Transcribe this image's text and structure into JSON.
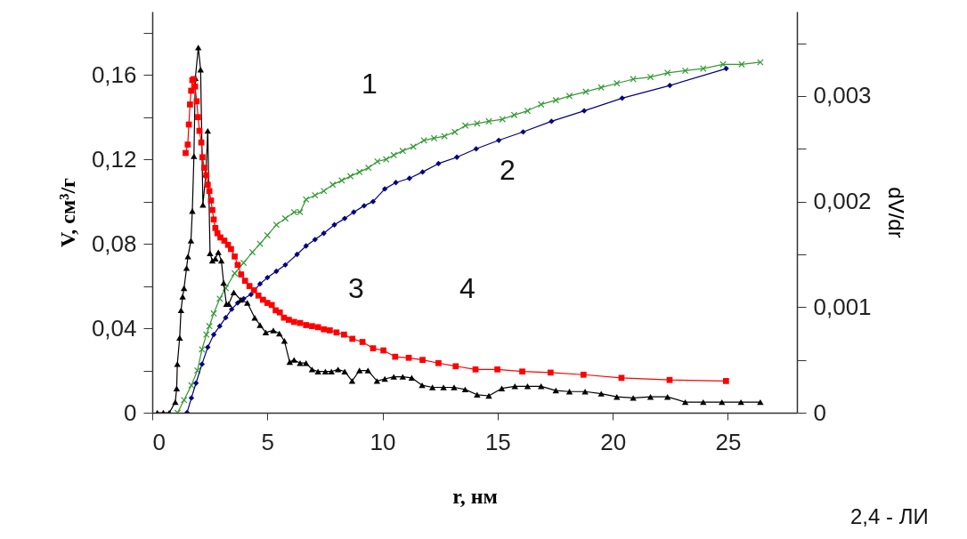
{
  "chart_data": {
    "type": "line",
    "xlabel": "r,  нм",
    "ylabel": "V,  см³/г",
    "y2label": "dV/dr",
    "xlim": [
      0,
      28
    ],
    "xticks": [
      0,
      5,
      10,
      15,
      20,
      25
    ],
    "ylim": [
      0,
      0.19
    ],
    "yticks": [
      0,
      {
        "value": 0.02,
        "label": null
      },
      {
        "value": 0.04,
        "label": "0,04"
      },
      {
        "value": 0.06,
        "label": null
      },
      {
        "value": 0.08,
        "label": "0,08"
      },
      {
        "value": 0.1,
        "label": null
      },
      {
        "value": 0.12,
        "label": "0,12"
      },
      {
        "value": 0.14,
        "label": null
      },
      {
        "value": 0.16,
        "label": "0,16"
      },
      {
        "value": 0.18,
        "label": null
      }
    ],
    "y2lim": [
      0,
      0.0038
    ],
    "y2ticks": [
      0,
      {
        "value": 0.0005,
        "label": null
      },
      {
        "value": 0.001,
        "label": "0,001"
      },
      {
        "value": 0.0015,
        "label": null
      },
      {
        "value": 0.002,
        "label": "0,002"
      },
      {
        "value": 0.0025,
        "label": null
      },
      {
        "value": 0.003,
        "label": "0,003"
      },
      {
        "value": 0.0035,
        "label": null
      }
    ],
    "grid": false,
    "series": [
      {
        "color": "#339933",
        "marker": "cross",
        "x": [
          1.1,
          1.38,
          1.7,
          1.96,
          2.16,
          2.35,
          2.48,
          2.67,
          2.93,
          3.19,
          3.58,
          3.97,
          4.35,
          4.68,
          5.0,
          5.39,
          5.78,
          6.16,
          6.42,
          6.68,
          7.07,
          7.45,
          7.84,
          8.23,
          8.61,
          9.0,
          9.39,
          9.78,
          10.16,
          10.49,
          10.88,
          11.34,
          11.8,
          12.24,
          12.69,
          13.14,
          13.6,
          14.11,
          14.62,
          15.21,
          15.72,
          16.3,
          16.89,
          17.53,
          18.12,
          18.83,
          19.5,
          20.18,
          20.89,
          21.64,
          22.38,
          23.15,
          23.93,
          24.79,
          25.6,
          26.41
        ],
        "values": [
          0,
          0.006,
          0.013,
          0.02,
          0.03,
          0.037,
          0.041,
          0.047,
          0.054,
          0.059,
          0.066,
          0.071,
          0.076,
          0.08,
          0.084,
          0.089,
          0.092,
          0.095,
          0.095,
          0.101,
          0.103,
          0.105,
          0.108,
          0.11,
          0.112,
          0.114,
          0.116,
          0.119,
          0.12,
          0.122,
          0.124,
          0.126,
          0.129,
          0.13,
          0.131,
          0.133,
          0.136,
          0.137,
          0.138,
          0.139,
          0.141,
          0.143,
          0.146,
          0.148,
          0.15,
          0.152,
          0.154,
          0.156,
          0.158,
          0.159,
          0.161,
          0.162,
          0.163,
          0.165,
          0.165,
          0.166
        ]
      },
      {
        "color": "#000080",
        "marker": "diamond",
        "x": [
          1.51,
          1.7,
          1.9,
          2.16,
          2.41,
          2.67,
          2.93,
          3.19,
          3.45,
          3.71,
          3.97,
          4.29,
          4.68,
          5.0,
          5.39,
          5.78,
          6.29,
          6.68,
          7.07,
          7.45,
          7.91,
          8.36,
          8.75,
          9.2,
          9.59,
          10.1,
          10.58,
          11.17,
          11.74,
          12.43,
          13.23,
          14.07,
          15.05,
          16.11,
          17.34,
          18.76,
          20.41,
          22.48,
          24.93
        ],
        "values": [
          0,
          0.007,
          0.014,
          0.023,
          0.031,
          0.037,
          0.041,
          0.045,
          0.049,
          0.052,
          0.054,
          0.056,
          0.061,
          0.064,
          0.067,
          0.07,
          0.075,
          0.079,
          0.082,
          0.085,
          0.089,
          0.092,
          0.095,
          0.098,
          0.1,
          0.106,
          0.109,
          0.111,
          0.114,
          0.118,
          0.121,
          0.125,
          0.129,
          0.133,
          0.138,
          0.143,
          0.149,
          0.155,
          0.163
        ]
      },
      {
        "color": "#000000",
        "marker": "triangle",
        "axis": "y2",
        "x": [
          0.22,
          0.48,
          0.74,
          1.0,
          1.06,
          1.09,
          1.19,
          1.25,
          1.32,
          1.38,
          1.49,
          1.55,
          1.68,
          1.74,
          1.81,
          1.87,
          2.0,
          2.1,
          2.2,
          2.33,
          2.41,
          2.51,
          2.61,
          2.74,
          2.87,
          3.0,
          3.1,
          3.22,
          3.32,
          3.54,
          3.84,
          4.13,
          4.45,
          4.68,
          4.93,
          5.26,
          5.52,
          5.74,
          5.97,
          6.16,
          6.42,
          6.68,
          6.94,
          7.2,
          7.52,
          7.78,
          8.07,
          8.36,
          8.68,
          9.0,
          9.37,
          9.76,
          10.1,
          10.49,
          10.88,
          11.27,
          11.72,
          12.17,
          12.65,
          13.11,
          13.59,
          14.11,
          14.62,
          15.18,
          15.75,
          16.3,
          16.89,
          17.53,
          18.12,
          18.8,
          19.5,
          20.18,
          20.89,
          21.64,
          22.38,
          23.15,
          23.93,
          24.74,
          25.57,
          26.41
        ],
        "values": [
          0,
          0,
          0,
          0.0001,
          0.00023,
          0.00046,
          0.00071,
          0.00097,
          0.0011,
          0.00118,
          0.00137,
          0.00148,
          0.00163,
          0.00191,
          0.00243,
          0.00317,
          0.00346,
          0.00325,
          0.00197,
          0.00226,
          0.00267,
          0.00151,
          0.00144,
          0.00146,
          0.00152,
          0.00144,
          0.00123,
          0.00103,
          0.00103,
          0.00114,
          0.00107,
          0.00104,
          0.0009,
          0.00083,
          0.00076,
          0.00078,
          0.00075,
          0.00068,
          0.00048,
          0.0005,
          0.00047,
          0.00047,
          0.00041,
          0.00039,
          0.00039,
          0.00039,
          0.00041,
          0.00039,
          0.0003,
          0.0004,
          0.0004,
          0.0003,
          0.00032,
          0.00034,
          0.00034,
          0.00033,
          0.00026,
          0.00024,
          0.00024,
          0.00024,
          0.00022,
          0.00017,
          0.00016,
          0.00023,
          0.00025,
          0.00025,
          0.00025,
          0.00021,
          0.0002,
          0.0002,
          0.00018,
          0.00015,
          0.00014,
          0.00015,
          0.00015,
          0.0001,
          0.0001,
          0.0001,
          0.0001,
          0.0001
        ]
      },
      {
        "color": "#ff0000",
        "marker": "square",
        "axis": "y2",
        "x": [
          1.45,
          1.54,
          1.59,
          1.64,
          1.69,
          1.74,
          1.8,
          1.86,
          1.93,
          1.99,
          2.05,
          2.13,
          2.18,
          2.26,
          2.35,
          2.41,
          2.48,
          2.55,
          2.61,
          2.67,
          2.74,
          2.83,
          2.96,
          3.13,
          3.29,
          3.42,
          3.58,
          3.71,
          3.86,
          4.03,
          4.22,
          4.42,
          4.61,
          4.81,
          5.0,
          5.19,
          5.36,
          5.54,
          5.72,
          5.93,
          6.16,
          6.42,
          6.68,
          6.94,
          7.2,
          7.45,
          7.71,
          8.0,
          8.33,
          8.69,
          9.13,
          9.59,
          10.04,
          10.55,
          11.14,
          11.74,
          12.43,
          13.18,
          14.04,
          14.99,
          16.07,
          17.3,
          18.73,
          20.38,
          22.47,
          24.92
        ],
        "values": [
          0.00246,
          0.00254,
          0.00273,
          0.00292,
          0.00305,
          0.00315,
          0.00316,
          0.00309,
          0.00295,
          0.0028,
          0.00267,
          0.00256,
          0.00242,
          0.00232,
          0.00225,
          0.00216,
          0.0021,
          0.00201,
          0.00192,
          0.00183,
          0.00175,
          0.0017,
          0.00166,
          0.00163,
          0.00159,
          0.00155,
          0.00148,
          0.0014,
          0.00131,
          0.00125,
          0.0012,
          0.00116,
          0.00111,
          0.00107,
          0.00104,
          0.00102,
          0.00097,
          0.00095,
          0.0009,
          0.00088,
          0.00086,
          0.00085,
          0.00083,
          0.00082,
          0.00081,
          0.00079,
          0.00078,
          0.00076,
          0.00074,
          0.0007,
          0.00067,
          0.00061,
          0.00059,
          0.00053,
          0.00052,
          0.0005,
          0.00047,
          0.00044,
          0.00041,
          0.00041,
          0.00039,
          0.00038,
          0.00036,
          0.00033,
          0.00031,
          0.0003
        ]
      }
    ],
    "annotations": [
      "1",
      "2",
      "3",
      "4",
      "2,4 - ЛИ"
    ]
  }
}
